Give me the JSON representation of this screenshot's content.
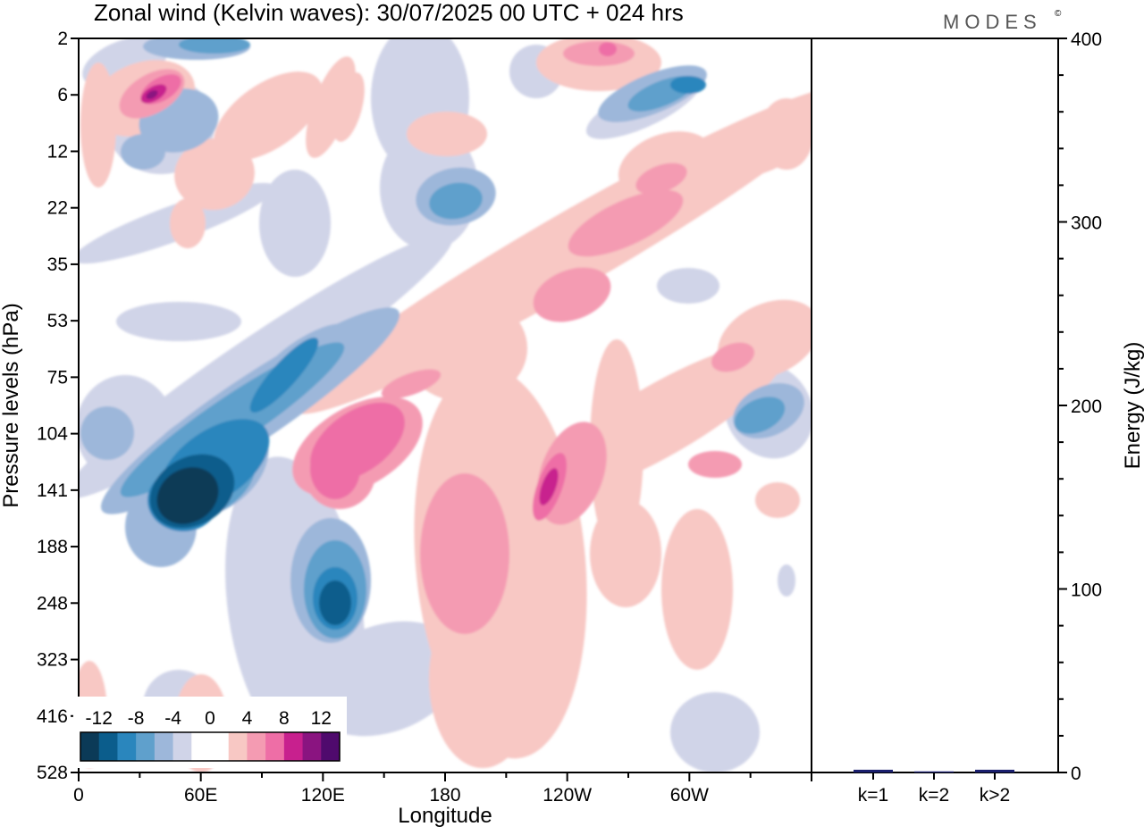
{
  "header": {
    "title": "Zonal wind (Kelvin waves):  30/07/2025  00 UTC  + 024 hrs",
    "logo": "MODES",
    "logo_mark": "©"
  },
  "colors": {
    "levels": [
      "#0b3a57",
      "#0b5d8c",
      "#2a86bd",
      "#5fa0cc",
      "#9db7da",
      "#d0d4e8",
      "#ffffff",
      "#ffffff",
      "#f8c8c4",
      "#f49bb2",
      "#ee6ea6",
      "#c8208e",
      "#8a1480",
      "#4f0a6d"
    ]
  },
  "chart_data": [
    {
      "type": "heatmap",
      "title": "Zonal wind (Kelvin waves):  30/07/2025  00 UTC  + 024 hrs",
      "xlabel": "Longitude",
      "ylabel": "Pressure levels (hPa)",
      "x_ticks": [
        "0",
        "60E",
        "120E",
        "180",
        "120W",
        "60W"
      ],
      "x_range": [
        0,
        360
      ],
      "y_ticks": [
        "2",
        "6",
        "12",
        "22",
        "35",
        "53",
        "75",
        "104",
        "141",
        "188",
        "248",
        "323",
        "416",
        "528"
      ],
      "colorbar": {
        "tick_labels": [
          "-12",
          "-8",
          "-4",
          "0",
          "4",
          "8",
          "12"
        ],
        "level_bounds": [
          -14,
          -12,
          -10,
          -8,
          -6,
          -4,
          -2,
          0,
          2,
          4,
          6,
          8,
          10,
          12,
          14
        ]
      },
      "features": [
        {
          "lon": 65,
          "lev": 8.5,
          "value": -14,
          "note": "strongest easterly core near 141 hPa"
        },
        {
          "lon": 123,
          "lev": 9.8,
          "value": -10
        },
        {
          "lon": 140,
          "lev": 7.6,
          "value": 9
        },
        {
          "lon": 37,
          "lev": 1.1,
          "value": 11
        },
        {
          "lon": 230,
          "lev": 8.3,
          "value": 9
        },
        {
          "lon": 323,
          "lev": 7.0,
          "value": -6
        }
      ]
    },
    {
      "type": "bar",
      "ylabel": "Energy (J/kg)",
      "categories": [
        "k=1",
        "k=2",
        "k>2"
      ],
      "values": [
        1.5,
        0.6,
        1.5
      ],
      "ylim": [
        0,
        400
      ],
      "y_ticks": [
        "0",
        "100",
        "200",
        "300",
        "400"
      ],
      "bar_color": "#1a1f6e"
    }
  ]
}
